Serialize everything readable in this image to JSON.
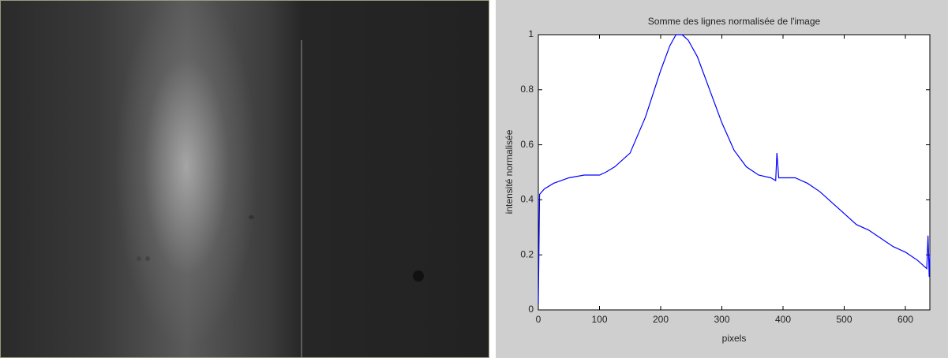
{
  "chart_data": {
    "type": "line",
    "title": "Somme des lignes normalisée de l'image",
    "x_label": "pixels",
    "y_label": "intensité normalisée",
    "x": [
      0,
      2,
      10,
      25,
      50,
      75,
      100,
      110,
      125,
      150,
      175,
      200,
      215,
      225,
      235,
      245,
      260,
      280,
      300,
      320,
      340,
      360,
      380,
      388,
      390,
      393,
      400,
      420,
      440,
      460,
      480,
      500,
      520,
      540,
      560,
      580,
      600,
      620,
      635,
      637,
      639,
      640
    ],
    "values": [
      0.02,
      0.42,
      0.44,
      0.46,
      0.48,
      0.49,
      0.49,
      0.5,
      0.52,
      0.57,
      0.7,
      0.87,
      0.96,
      1.0,
      1.0,
      0.98,
      0.92,
      0.8,
      0.68,
      0.58,
      0.52,
      0.49,
      0.48,
      0.47,
      0.57,
      0.48,
      0.48,
      0.48,
      0.46,
      0.43,
      0.39,
      0.35,
      0.31,
      0.29,
      0.26,
      0.23,
      0.21,
      0.18,
      0.15,
      0.27,
      0.12,
      0.2
    ],
    "color": "#0000ff",
    "xlim": [
      0,
      640
    ],
    "xticks": [
      0,
      100,
      200,
      300,
      400,
      500,
      600
    ],
    "ylim": [
      0,
      1
    ],
    "yticks": [
      0,
      0.2,
      0.4,
      0.6,
      0.8,
      1
    ]
  }
}
